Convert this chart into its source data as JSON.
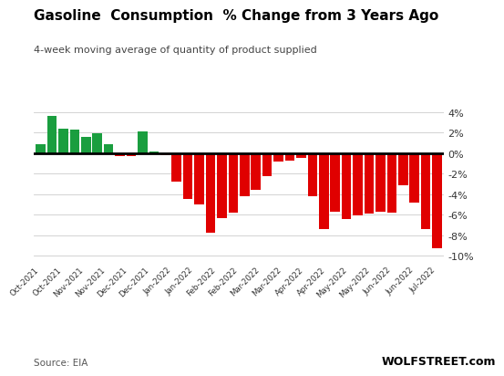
{
  "title": "Gasoline  Consumption  % Change from 3 Years Ago",
  "subtitle": "4-week moving average of quantity of product supplied",
  "source": "Source: EIA",
  "watermark": "WOLFSTREET.com",
  "bar_data": [
    [
      "Oct-2021",
      0.9
    ],
    [
      "Oct-2021",
      3.6
    ],
    [
      "Nov-2021",
      2.4
    ],
    [
      "Nov-2021",
      2.3
    ],
    [
      "Nov-2021",
      1.6
    ],
    [
      "Nov-2021",
      1.9
    ],
    [
      "Dec-2021",
      0.9
    ],
    [
      "Dec-2021",
      -0.3
    ],
    [
      "Dec-2021",
      -0.3
    ],
    [
      "Jan-2022",
      2.1
    ],
    [
      "Jan-2022",
      0.2
    ],
    [
      "Jan-2022",
      -0.2
    ],
    [
      "Feb-2022",
      -2.8
    ],
    [
      "Feb-2022",
      -4.5
    ],
    [
      "Feb-2022",
      -5.0
    ],
    [
      "Feb-2022",
      -7.8
    ],
    [
      "Feb-2022",
      -6.3
    ],
    [
      "Feb-2022",
      -5.8
    ],
    [
      "Mar-2022",
      -4.2
    ],
    [
      "Mar-2022",
      -3.6
    ],
    [
      "Mar-2022",
      -2.2
    ],
    [
      "Mar-2022",
      -0.8
    ],
    [
      "Mar-2022",
      -0.7
    ],
    [
      "Apr-2022",
      -0.5
    ],
    [
      "Apr-2022",
      -4.2
    ],
    [
      "Apr-2022",
      -7.4
    ],
    [
      "Apr-2022",
      -5.7
    ],
    [
      "May-2022",
      -6.4
    ],
    [
      "May-2022",
      -6.1
    ],
    [
      "May-2022",
      -5.9
    ],
    [
      "May-2022",
      -5.7
    ],
    [
      "Jun-2022",
      -5.8
    ],
    [
      "Jun-2022",
      -3.1
    ],
    [
      "Jun-2022",
      -4.8
    ],
    [
      "Jun-2022",
      -7.4
    ],
    [
      "Jul-2022",
      -9.3
    ]
  ],
  "xtick_labels": [
    "Oct-2021",
    "Oct-2021",
    "Nov-2021",
    "Nov-2021",
    "Dec-2021",
    "Dec-2021",
    "Jan-2022",
    "Jan-2022",
    "Feb-2022",
    "Feb-2022",
    "Mar-2022",
    "Mar-2022",
    "Apr-2022",
    "Apr-2022",
    "May-2022",
    "May-2022",
    "Jun-2022",
    "Jun-2022",
    "Jul-2022"
  ],
  "ylim": [
    -10.5,
    4.5
  ],
  "yticks": [
    4,
    2,
    0,
    -2,
    -4,
    -6,
    -8,
    -10
  ],
  "ytick_labels": [
    "4%",
    "2%",
    "0%",
    "-2%",
    "-4%",
    "-6%",
    "-8%",
    "-10%"
  ],
  "green_color": "#1a9e3f",
  "red_color": "#e00000",
  "bg_color": "#ffffff",
  "zero_line_color": "#000000",
  "grid_color": "#cccccc",
  "title_color": "#000000",
  "source_color": "#555555",
  "watermark_color": "#000000"
}
